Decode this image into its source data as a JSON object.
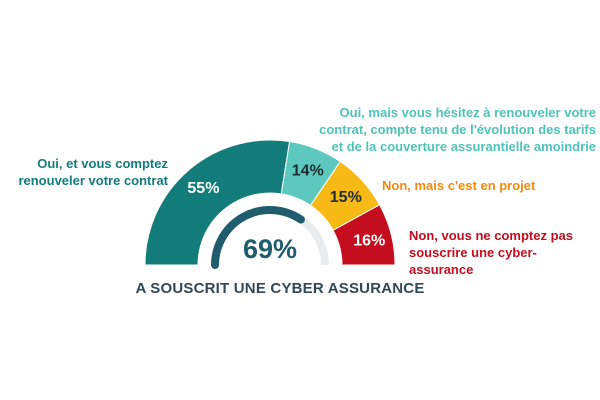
{
  "chart_data": {
    "type": "pie",
    "variant": "semicircle",
    "slices": [
      {
        "value": 55,
        "label": "55%",
        "category": "Oui, et vous comptez renouveler votre contrat",
        "color": "#127c7b"
      },
      {
        "value": 14,
        "label": "14%",
        "category": "Oui, mais vous hésitez à renouveler votre contrat, compte tenu de l'évolution des tarifs et de la couverture assurantielle amoindrie",
        "color": "#5cc8be"
      },
      {
        "value": 15,
        "label": "15%",
        "category": "Non, mais c'est en projet",
        "color": "#f7b915"
      },
      {
        "value": 16,
        "label": "16%",
        "category": "Non, vous ne comptez pas souscrire une cyber-assurance",
        "color": "#c40d1e"
      }
    ],
    "center": {
      "value": 69,
      "label": "69%",
      "caption": "A SOUSCRIT UNE CYBER ASSURANCE",
      "color": "#1e5c6e"
    }
  },
  "labels": {
    "left_line1": "Oui, et vous comptez",
    "left_line2": "renouveler votre contrat",
    "q_line1": "Oui, mais vous hésitez à renouveler votre",
    "q_line2": "contrat, compte tenu de l'évolution des tarifs",
    "q_line3": "et de la couverture assurantielle amoindrie",
    "orange": "Non, mais c'est en projet",
    "red_line1": "Non, vous ne comptez pas",
    "red_line2": "souscrire une cyber-assurance"
  }
}
